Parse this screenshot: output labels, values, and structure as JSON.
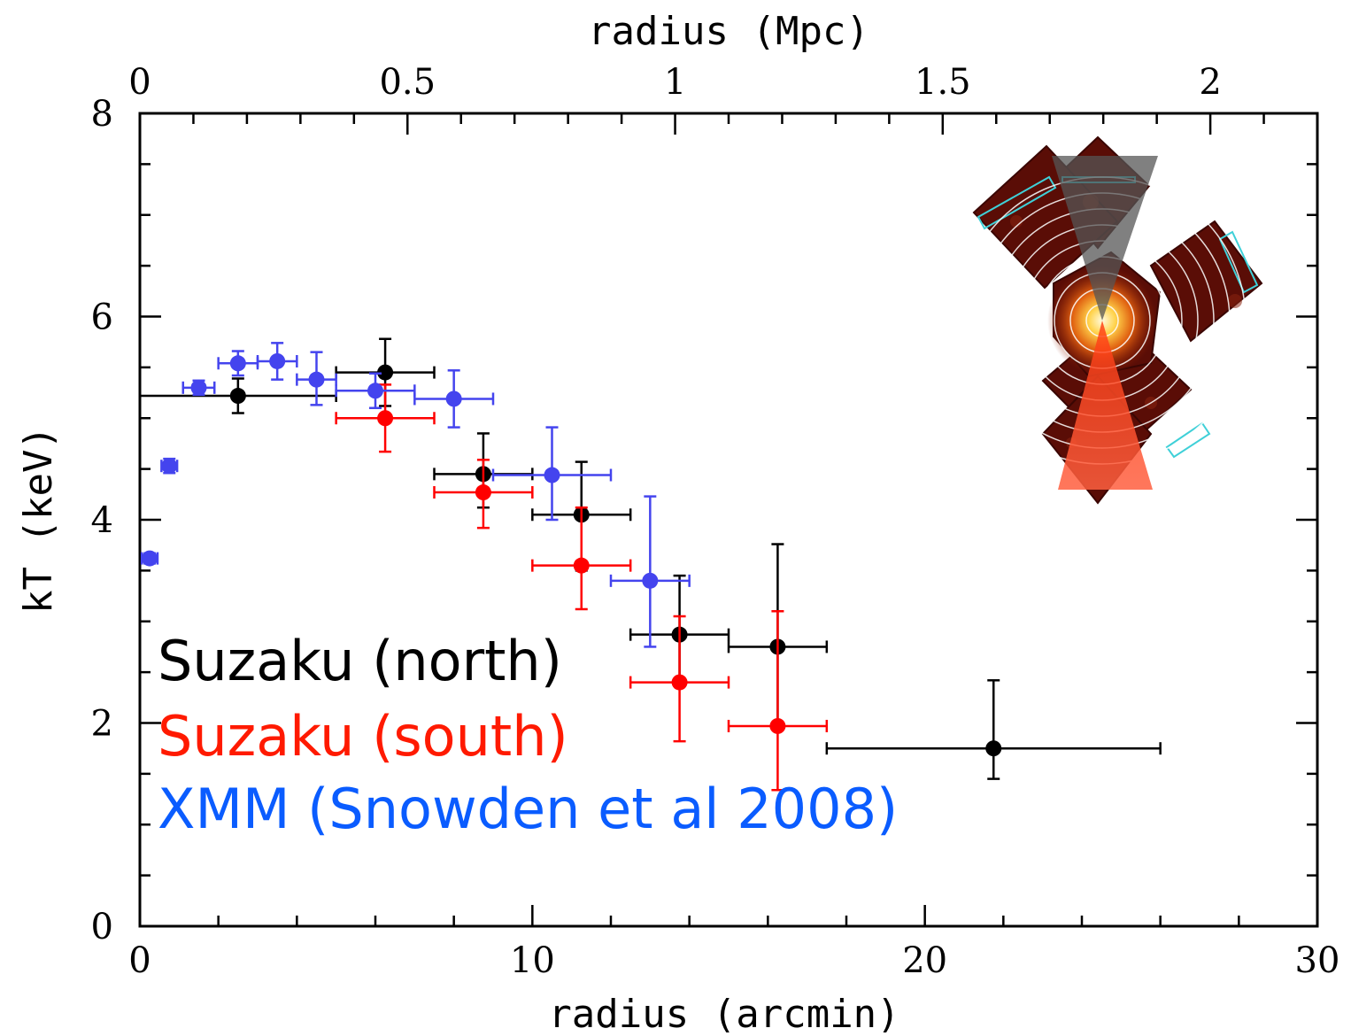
{
  "chart_data": {
    "type": "scatter",
    "xlabel": "radius (arcmin)",
    "x2label": "radius (Mpc)",
    "ylabel": "kT (keV)",
    "xlim": [
      0,
      30
    ],
    "ylim": [
      0,
      8
    ],
    "x2lim": [
      0,
      2.2
    ],
    "xticks": [
      0,
      10,
      20,
      30
    ],
    "x2ticks": [
      0,
      0.5,
      1,
      1.5,
      2
    ],
    "yticks": [
      0,
      2,
      4,
      6,
      8
    ],
    "grid": false,
    "legend_position": "bottom-left",
    "series": [
      {
        "name": "Suzaku (north)",
        "color": "#000000",
        "points": [
          {
            "x": 2.5,
            "y": 5.22,
            "xerr": [
              2.5,
              2.5
            ],
            "yerr": [
              0.17,
              0.17
            ]
          },
          {
            "x": 6.25,
            "y": 5.45,
            "xerr": [
              1.25,
              1.25
            ],
            "yerr": [
              0.33,
              0.33
            ]
          },
          {
            "x": 8.75,
            "y": 4.45,
            "xerr": [
              1.25,
              1.25
            ],
            "yerr": [
              0.33,
              0.4
            ]
          },
          {
            "x": 11.25,
            "y": 4.05,
            "xerr": [
              1.25,
              1.25
            ],
            "yerr": [
              0.55,
              0.52
            ]
          },
          {
            "x": 13.75,
            "y": 2.87,
            "xerr": [
              1.25,
              1.25
            ],
            "yerr": [
              0.5,
              0.58
            ]
          },
          {
            "x": 16.25,
            "y": 2.75,
            "xerr": [
              1.25,
              1.25
            ],
            "yerr": [
              0.75,
              1.01
            ]
          },
          {
            "x": 21.75,
            "y": 1.75,
            "xerr": [
              4.25,
              4.25
            ],
            "yerr": [
              0.3,
              0.67
            ]
          }
        ]
      },
      {
        "name": "Suzaku (south)",
        "color": "#ff0000",
        "points": [
          {
            "x": 6.25,
            "y": 5.0,
            "xerr": [
              1.25,
              1.25
            ],
            "yerr": [
              0.33,
              0.33
            ]
          },
          {
            "x": 8.75,
            "y": 4.27,
            "xerr": [
              1.25,
              1.25
            ],
            "yerr": [
              0.35,
              0.32
            ]
          },
          {
            "x": 11.25,
            "y": 3.55,
            "xerr": [
              1.25,
              1.25
            ],
            "yerr": [
              0.43,
              0.57
            ]
          },
          {
            "x": 13.75,
            "y": 2.4,
            "xerr": [
              1.25,
              1.25
            ],
            "yerr": [
              0.58,
              0.65
            ]
          },
          {
            "x": 16.25,
            "y": 1.97,
            "xerr": [
              1.25,
              1.25
            ],
            "yerr": [
              0.63,
              1.13
            ]
          }
        ]
      },
      {
        "name": "XMM (Snowden et al 2008)",
        "color": "#4444ee",
        "points": [
          {
            "x": 0.25,
            "y": 3.62,
            "xerr": [
              0.2,
              0.2
            ],
            "yerr": [
              0.05,
              0.05
            ]
          },
          {
            "x": 0.75,
            "y": 4.53,
            "xerr": [
              0.2,
              0.2
            ],
            "yerr": [
              0.07,
              0.07
            ]
          },
          {
            "x": 1.5,
            "y": 5.3,
            "xerr": [
              0.4,
              0.4
            ],
            "yerr": [
              0.07,
              0.07
            ]
          },
          {
            "x": 2.5,
            "y": 5.54,
            "xerr": [
              0.5,
              0.5
            ],
            "yerr": [
              0.12,
              0.12
            ]
          },
          {
            "x": 3.5,
            "y": 5.56,
            "xerr": [
              0.5,
              0.5
            ],
            "yerr": [
              0.18,
              0.18
            ]
          },
          {
            "x": 4.5,
            "y": 5.38,
            "xerr": [
              0.5,
              0.5
            ],
            "yerr": [
              0.25,
              0.27
            ]
          },
          {
            "x": 6.0,
            "y": 5.27,
            "xerr": [
              1.0,
              1.0
            ],
            "yerr": [
              0.17,
              0.17
            ]
          },
          {
            "x": 8.0,
            "y": 5.19,
            "xerr": [
              1.0,
              1.0
            ],
            "yerr": [
              0.28,
              0.28
            ]
          },
          {
            "x": 10.5,
            "y": 4.44,
            "xerr": [
              1.5,
              1.5
            ],
            "yerr": [
              0.44,
              0.47
            ]
          },
          {
            "x": 13.0,
            "y": 3.4,
            "xerr": [
              1.0,
              1.0
            ],
            "yerr": [
              0.65,
              0.83
            ]
          }
        ]
      }
    ],
    "legend": [
      {
        "label": "Suzaku (north)",
        "color": "#000000"
      },
      {
        "label": "Suzaku (south)",
        "color": "#ff1a00"
      },
      {
        "label": "XMM (Snowden et al 2008)",
        "color": "#0a5cff"
      }
    ]
  }
}
